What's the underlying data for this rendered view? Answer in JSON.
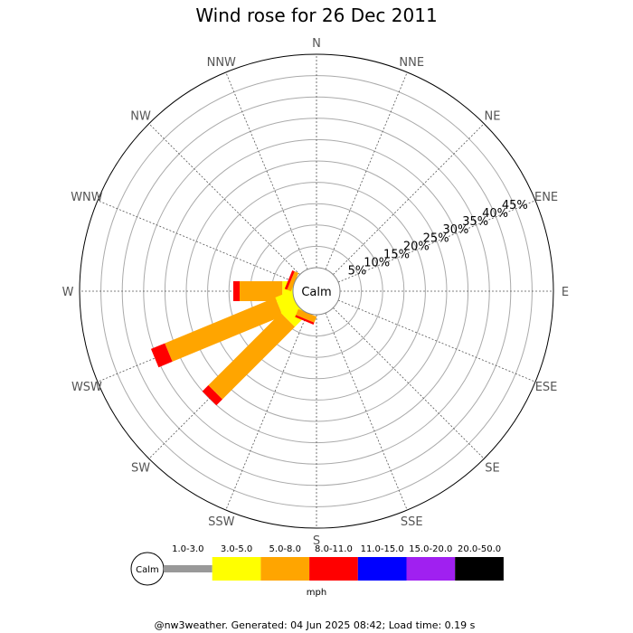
{
  "chart_data": {
    "type": "wind-rose",
    "title": "Wind rose for 26 Dec 2011",
    "center_label": "Calm",
    "directions": [
      "N",
      "NNE",
      "NE",
      "ENE",
      "E",
      "ESE",
      "SE",
      "SSE",
      "S",
      "SSW",
      "SW",
      "WSW",
      "W",
      "WNW",
      "NW",
      "NNW"
    ],
    "percent_ticks": [
      "5%",
      "10%",
      "15%",
      "20%",
      "25%",
      "30%",
      "35%",
      "40%",
      "45%"
    ],
    "rmax_percent": 50,
    "speed_bins": [
      {
        "label": "1.0-3.0",
        "color": "#999999"
      },
      {
        "label": "3.0-5.0",
        "color": "#ffff00"
      },
      {
        "label": "5.0-8.0",
        "color": "#ffa500"
      },
      {
        "label": "8.0-11.0",
        "color": "#ff0000"
      },
      {
        "label": "11.0-15.0",
        "color": "#0000ff"
      },
      {
        "label": "15.0-20.0",
        "color": "#a020f0"
      },
      {
        "label": "20.0-50.0",
        "color": "#000000"
      }
    ],
    "unit": "mph",
    "series": [
      {
        "direction": "W",
        "segments": [
          {
            "bin": "3.0-5.0",
            "from": 0,
            "to": 2.5
          },
          {
            "bin": "5.0-8.0",
            "from": 2.5,
            "to": 12.5
          },
          {
            "bin": "8.0-11.0",
            "from": 12.5,
            "to": 14
          }
        ]
      },
      {
        "direction": "WSW",
        "segments": [
          {
            "bin": "3.0-5.0",
            "from": 0,
            "to": 4
          },
          {
            "bin": "5.0-8.0",
            "from": 4,
            "to": 32
          },
          {
            "bin": "8.0-11.0",
            "from": 32,
            "to": 35.5
          }
        ]
      },
      {
        "direction": "SW",
        "segments": [
          {
            "bin": "3.0-5.0",
            "from": 0,
            "to": 4
          },
          {
            "bin": "5.0-8.0",
            "from": 4,
            "to": 28
          },
          {
            "bin": "8.0-11.0",
            "from": 28,
            "to": 30
          }
        ]
      },
      {
        "direction": "SSW",
        "segments": [
          {
            "bin": "5.0-8.0",
            "from": 0,
            "to": 1.5
          },
          {
            "bin": "8.0-11.0",
            "from": 1.5,
            "to": 2
          }
        ]
      },
      {
        "direction": "WNW",
        "segments": [
          {
            "bin": "5.0-8.0",
            "from": 0,
            "to": 1
          },
          {
            "bin": "8.0-11.0",
            "from": 1,
            "to": 1.6
          }
        ]
      }
    ]
  },
  "footer": "@nw3weather. Generated: 04 Jun 2025 08:42; Load time: 0.19 s"
}
